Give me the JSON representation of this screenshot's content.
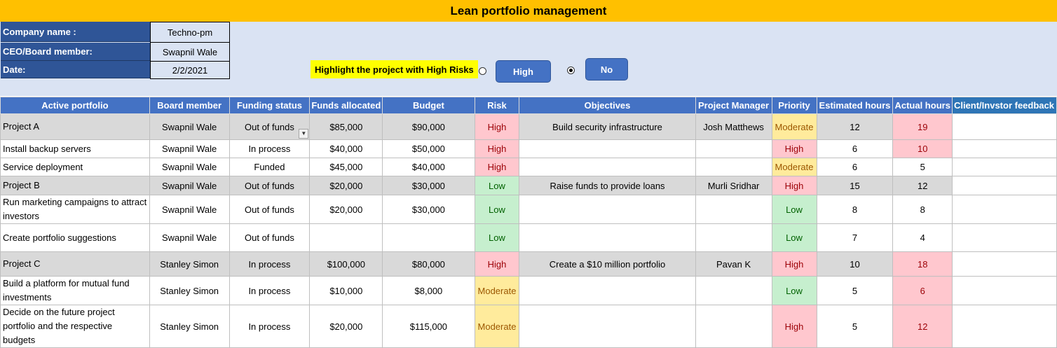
{
  "title": "Lean portfolio management",
  "company_info": [
    {
      "label": "Company name :",
      "value": "Techno-pm"
    },
    {
      "label": "CEO/Board member:",
      "value": "Swapnil Wale"
    },
    {
      "label": "Date:",
      "value": "2/2/2021"
    }
  ],
  "highlight": {
    "label": "Highlight the project with High Risks",
    "option_high": "High",
    "option_no": "No",
    "selected": "No"
  },
  "columns": [
    "Active portfolio",
    "Board member",
    "Funding status",
    "Funds allocated",
    "Budget",
    "Risk",
    "Objectives",
    "Project Manager",
    "Priority",
    "Estimated hours",
    "Actual hours",
    "Client/Invstor feedback"
  ],
  "rows": [
    {
      "portfolio": "Project A",
      "board": "Swapnil Wale",
      "status": "Out of funds",
      "funds": "$85,000",
      "budget": "$90,000",
      "risk": "High",
      "objective": "Build security infrastructure",
      "manager": "Josh Matthews",
      "priority": "Moderate",
      "est": "12",
      "actual": "19",
      "project": true
    },
    {
      "portfolio": "Install backup servers",
      "board": "Swapnil Wale",
      "status": "In process",
      "funds": "$40,000",
      "budget": "$50,000",
      "risk": "High",
      "objective": "",
      "manager": "",
      "priority": "High",
      "est": "6",
      "actual": "10",
      "project": false
    },
    {
      "portfolio": "Service deployment",
      "board": "Swapnil Wale",
      "status": "Funded",
      "funds": "$45,000",
      "budget": "$40,000",
      "risk": "High",
      "objective": "",
      "manager": "",
      "priority": "Moderate",
      "est": "6",
      "actual": "5",
      "project": false
    },
    {
      "portfolio": "Project B",
      "board": "Swapnil Wale",
      "status": "Out of funds",
      "funds": "$20,000",
      "budget": "$30,000",
      "risk": "Low",
      "objective": "Raise funds to provide loans",
      "manager": "Murli Sridhar",
      "priority": "High",
      "est": "15",
      "actual": "12",
      "project": true
    },
    {
      "portfolio": "Run marketing campaigns to attract investors",
      "board": "Swapnil Wale",
      "status": "Out of funds",
      "funds": "$20,000",
      "budget": "$30,000",
      "risk": "Low",
      "objective": "",
      "manager": "",
      "priority": "Low",
      "est": "8",
      "actual": "8",
      "project": false
    },
    {
      "portfolio": "Create portfolio suggestions",
      "board": "Swapnil Wale",
      "status": "Out of funds",
      "funds": "",
      "budget": "",
      "risk": "Low",
      "objective": "",
      "manager": "",
      "priority": "Low",
      "est": "7",
      "actual": "4",
      "project": false
    },
    {
      "portfolio": "Project C",
      "board": "Stanley Simon",
      "status": "In process",
      "funds": "$100,000",
      "budget": "$80,000",
      "risk": "High",
      "objective": "Create a $10 million portfolio",
      "manager": "Pavan K",
      "priority": "High",
      "est": "10",
      "actual": "18",
      "project": true
    },
    {
      "portfolio": "Build a platform for mutual fund investments",
      "board": "Stanley Simon",
      "status": "In process",
      "funds": "$10,000",
      "budget": "$8,000",
      "risk": "Moderate",
      "objective": "",
      "manager": "",
      "priority": "Low",
      "est": "5",
      "actual": "6",
      "project": false
    },
    {
      "portfolio": "Decide on the future project portfolio and the respective budgets",
      "board": "Stanley Simon",
      "status": "In process",
      "funds": "$20,000",
      "budget": "$115,000",
      "risk": "Moderate",
      "objective": "",
      "manager": "",
      "priority": "High",
      "est": "5",
      "actual": "12",
      "project": false
    }
  ],
  "colors": {
    "header": "#4472c4",
    "title": "#ffc000",
    "label_bg": "#2f5597",
    "panel": "#dae3f3"
  }
}
